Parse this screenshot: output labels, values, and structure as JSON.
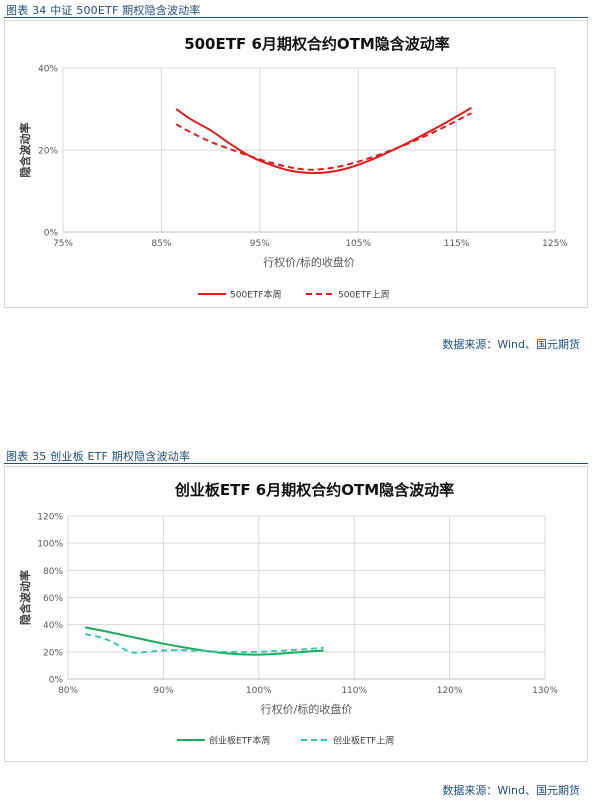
{
  "figures": [
    {
      "caption": "图表 34  中证 500ETF 期权隐含波动率",
      "source": "数据来源：Wind、国元期货",
      "chart_data": {
        "type": "line",
        "title": "500ETF 6月期权合约OTM隐含波动率",
        "xlabel": "行权价/标的收盘价",
        "ylabel": "隐含波动率",
        "xlim": [
          75,
          125
        ],
        "ylim": [
          0,
          40
        ],
        "x_ticks": [
          "75%",
          "85%",
          "95%",
          "105%",
          "115%",
          "125%"
        ],
        "y_ticks": [
          "0%",
          "20%",
          "40%"
        ],
        "grid": "vertical and horizontal",
        "legend": "bottom",
        "series": [
          {
            "name": "500ETF本周",
            "style": "solid",
            "color": "#e31a1c",
            "x": [
              86.5,
              88,
              90,
              92,
              94,
              96,
              98,
              100,
              102,
              104,
              106,
              108,
              110,
              112,
              114,
              116.5
            ],
            "y": [
              30,
              27.5,
              24.8,
              21.5,
              18.5,
              16.5,
              15.0,
              14.4,
              14.6,
              15.6,
              17.3,
              19.4,
              21.7,
              24.2,
              26.8,
              30.3
            ]
          },
          {
            "name": "500ETF上周",
            "style": "dashed",
            "color": "#e31a1c",
            "x": [
              86.5,
              88,
              90,
              92,
              94,
              96,
              98,
              100,
              102,
              104,
              106,
              108,
              110,
              112,
              114,
              116.5
            ],
            "y": [
              26.3,
              24.3,
              22.0,
              20.2,
              18.5,
              17.0,
              15.8,
              15.2,
              15.5,
              16.5,
              17.9,
              19.6,
              21.5,
              23.6,
              25.9,
              29.0
            ]
          }
        ]
      }
    },
    {
      "caption": "图表 35  创业板 ETF 期权隐含波动率",
      "source": "数据来源：Wind、国元期货",
      "chart_data": {
        "type": "line",
        "title": "创业板ETF 6月期权合约OTM隐含波动率",
        "xlabel": "行权价/标的收盘价",
        "ylabel": "隐含波动率",
        "xlim": [
          80,
          130
        ],
        "ylim": [
          0,
          120
        ],
        "x_ticks": [
          "80%",
          "90%",
          "100%",
          "110%",
          "120%",
          "130%"
        ],
        "y_ticks": [
          "0%",
          "20%",
          "40%",
          "60%",
          "80%",
          "100%",
          "120%"
        ],
        "grid": "vertical and horizontal",
        "legend": "bottom",
        "series": [
          {
            "name": "创业板ETF本周",
            "style": "solid",
            "color": "#1aab5b",
            "x": [
              81.8,
              84,
              86,
              88,
              90,
              92,
              94,
              96,
              98,
              100,
              102,
              104,
              106.8
            ],
            "y": [
              38,
              35,
              32,
              29,
              26,
              23.5,
              21.2,
              19.3,
              18.2,
              18.0,
              18.6,
              19.6,
              21.0
            ]
          },
          {
            "name": "创业板ETF上周",
            "style": "dashed",
            "color": "#3cc8a8",
            "x": [
              81.8,
              83.5,
              85,
              86.5,
              88,
              90,
              92,
              94,
              96,
              98,
              100,
              102,
              104,
              106.8
            ],
            "y": [
              33,
              30.5,
              26,
              19.8,
              19.8,
              21.0,
              21.3,
              20.7,
              20.0,
              19.8,
              20.0,
              20.7,
              21.5,
              23.0
            ]
          }
        ]
      }
    }
  ]
}
